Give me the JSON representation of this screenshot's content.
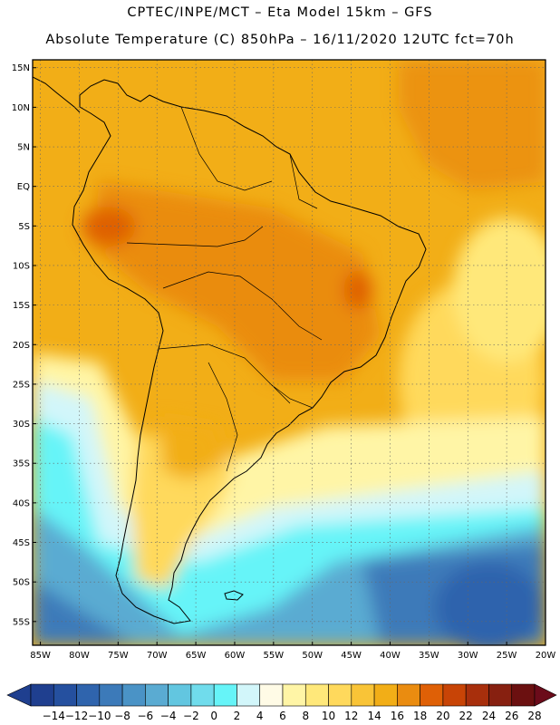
{
  "header": {
    "line1": "CPTEC/INPE/MCT –  Eta Model 15km – GFS",
    "line2": "Absolute Temperature (C) 850hPa – 16/11/2020 12UTC fct=70h"
  },
  "map": {
    "lat_labels": [
      "15N",
      "10N",
      "5N",
      "EQ",
      "5S",
      "10S",
      "15S",
      "20S",
      "25S",
      "30S",
      "35S",
      "40S",
      "45S",
      "50S",
      "55S"
    ],
    "lat_values": [
      15,
      10,
      5,
      0,
      -5,
      -10,
      -15,
      -20,
      -25,
      -30,
      -35,
      -40,
      -45,
      -50,
      -55
    ],
    "lon_labels": [
      "85W",
      "80W",
      "75W",
      "70W",
      "65W",
      "60W",
      "55W",
      "50W",
      "45W",
      "40W",
      "35W",
      "30W",
      "25W",
      "20W"
    ],
    "lon_values": [
      -85,
      -80,
      -75,
      -70,
      -65,
      -60,
      -55,
      -50,
      -45,
      -40,
      -35,
      -30,
      -25,
      -20
    ],
    "lon_range": [
      -86,
      -20
    ],
    "lat_range": [
      -58,
      16
    ],
    "grid": true
  },
  "colorbar": {
    "labels": [
      "-14",
      "-12",
      "-10",
      "-8",
      "-6",
      "-4",
      "-2",
      "0",
      "2",
      "4",
      "6",
      "8",
      "10",
      "12",
      "14",
      "16",
      "18",
      "20",
      "22",
      "24",
      "26",
      "28"
    ],
    "colors": [
      "#1f3f8f",
      "#25509f",
      "#2f64ad",
      "#3c7ab9",
      "#4a93c6",
      "#5aabd2",
      "#62c6e0",
      "#70dcec",
      "#66f4f8",
      "#d2f6fa",
      "#fffbe6",
      "#fff5a6",
      "#ffe87a",
      "#ffd95c",
      "#f9c437",
      "#f2ae17",
      "#ea8c10",
      "#df6006",
      "#c84406",
      "#a82f0c",
      "#872010",
      "#6b1010"
    ]
  }
}
